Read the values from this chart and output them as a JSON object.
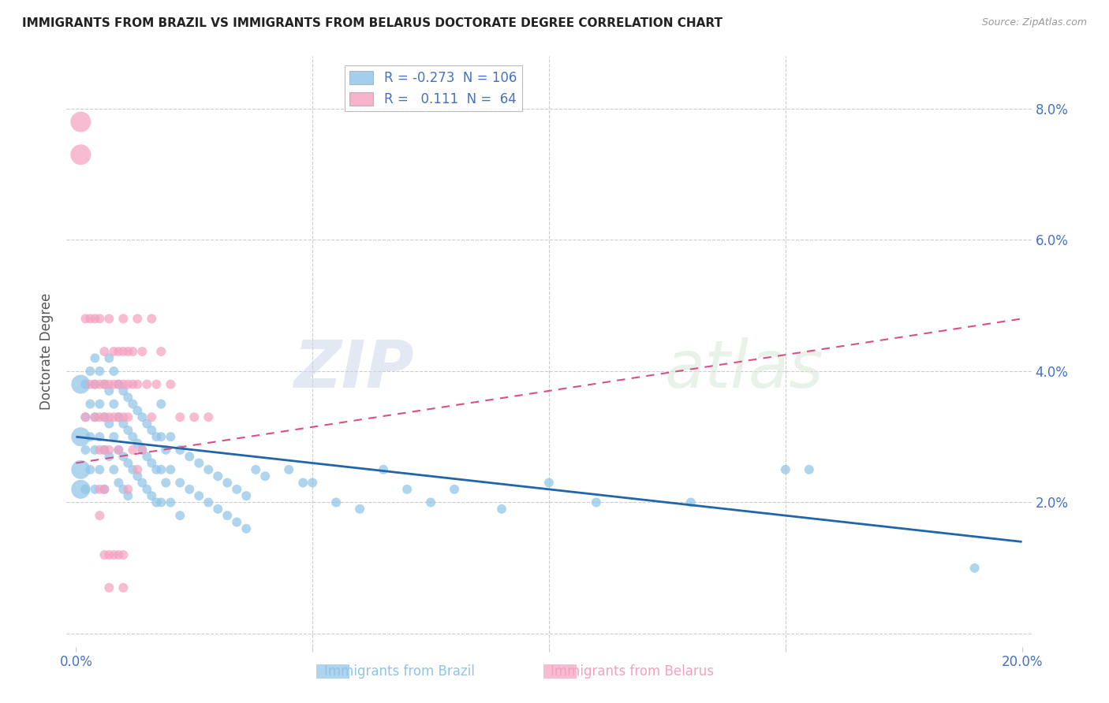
{
  "title": "IMMIGRANTS FROM BRAZIL VS IMMIGRANTS FROM BELARUS DOCTORATE DEGREE CORRELATION CHART",
  "source": "Source: ZipAtlas.com",
  "xlabel_brazil": "Immigrants from Brazil",
  "xlabel_belarus": "Immigrants from Belarus",
  "ylabel": "Doctorate Degree",
  "xlim": [
    -0.002,
    0.202
  ],
  "ylim": [
    -0.002,
    0.088
  ],
  "xticks": [
    0.0,
    0.05,
    0.1,
    0.15,
    0.2
  ],
  "yticks": [
    0.0,
    0.02,
    0.04,
    0.06,
    0.08
  ],
  "ytick_labels": [
    "",
    "2.0%",
    "4.0%",
    "6.0%",
    "8.0%"
  ],
  "xtick_labels": [
    "0.0%",
    "",
    "",
    "",
    "20.0%"
  ],
  "legend_brazil_r": "-0.273",
  "legend_brazil_n": "106",
  "legend_belarus_r": "0.111",
  "legend_belarus_n": "64",
  "brazil_color": "#8ec4e8",
  "belarus_color": "#f4a0c0",
  "brazil_line_color": "#2166ac",
  "belarus_line_color": "#d94f8a",
  "watermark": "ZIPatlas",
  "background_color": "#ffffff",
  "grid_color": "#cccccc",
  "axis_label_color": "#4472c4",
  "title_color": "#222222",
  "brazil_trend": [
    0.0,
    0.2,
    0.03,
    0.014
  ],
  "belarus_trend": [
    0.0,
    0.2,
    0.026,
    0.048
  ],
  "brazil_points": [
    [
      0.001,
      0.038
    ],
    [
      0.001,
      0.03
    ],
    [
      0.001,
      0.025
    ],
    [
      0.001,
      0.022
    ],
    [
      0.002,
      0.038
    ],
    [
      0.002,
      0.033
    ],
    [
      0.002,
      0.028
    ],
    [
      0.002,
      0.022
    ],
    [
      0.003,
      0.04
    ],
    [
      0.003,
      0.035
    ],
    [
      0.003,
      0.03
    ],
    [
      0.003,
      0.025
    ],
    [
      0.004,
      0.042
    ],
    [
      0.004,
      0.038
    ],
    [
      0.004,
      0.033
    ],
    [
      0.004,
      0.028
    ],
    [
      0.004,
      0.022
    ],
    [
      0.005,
      0.04
    ],
    [
      0.005,
      0.035
    ],
    [
      0.005,
      0.03
    ],
    [
      0.005,
      0.025
    ],
    [
      0.006,
      0.038
    ],
    [
      0.006,
      0.033
    ],
    [
      0.006,
      0.028
    ],
    [
      0.006,
      0.022
    ],
    [
      0.007,
      0.042
    ],
    [
      0.007,
      0.037
    ],
    [
      0.007,
      0.032
    ],
    [
      0.007,
      0.027
    ],
    [
      0.008,
      0.04
    ],
    [
      0.008,
      0.035
    ],
    [
      0.008,
      0.03
    ],
    [
      0.008,
      0.025
    ],
    [
      0.009,
      0.038
    ],
    [
      0.009,
      0.033
    ],
    [
      0.009,
      0.028
    ],
    [
      0.009,
      0.023
    ],
    [
      0.01,
      0.037
    ],
    [
      0.01,
      0.032
    ],
    [
      0.01,
      0.027
    ],
    [
      0.01,
      0.022
    ],
    [
      0.011,
      0.036
    ],
    [
      0.011,
      0.031
    ],
    [
      0.011,
      0.026
    ],
    [
      0.011,
      0.021
    ],
    [
      0.012,
      0.035
    ],
    [
      0.012,
      0.03
    ],
    [
      0.012,
      0.025
    ],
    [
      0.013,
      0.034
    ],
    [
      0.013,
      0.029
    ],
    [
      0.013,
      0.024
    ],
    [
      0.014,
      0.033
    ],
    [
      0.014,
      0.028
    ],
    [
      0.014,
      0.023
    ],
    [
      0.015,
      0.032
    ],
    [
      0.015,
      0.027
    ],
    [
      0.015,
      0.022
    ],
    [
      0.016,
      0.031
    ],
    [
      0.016,
      0.026
    ],
    [
      0.016,
      0.021
    ],
    [
      0.017,
      0.03
    ],
    [
      0.017,
      0.025
    ],
    [
      0.017,
      0.02
    ],
    [
      0.018,
      0.035
    ],
    [
      0.018,
      0.03
    ],
    [
      0.018,
      0.025
    ],
    [
      0.018,
      0.02
    ],
    [
      0.019,
      0.028
    ],
    [
      0.019,
      0.023
    ],
    [
      0.02,
      0.03
    ],
    [
      0.02,
      0.025
    ],
    [
      0.02,
      0.02
    ],
    [
      0.022,
      0.028
    ],
    [
      0.022,
      0.023
    ],
    [
      0.022,
      0.018
    ],
    [
      0.024,
      0.027
    ],
    [
      0.024,
      0.022
    ],
    [
      0.026,
      0.026
    ],
    [
      0.026,
      0.021
    ],
    [
      0.028,
      0.025
    ],
    [
      0.028,
      0.02
    ],
    [
      0.03,
      0.024
    ],
    [
      0.03,
      0.019
    ],
    [
      0.032,
      0.023
    ],
    [
      0.032,
      0.018
    ],
    [
      0.034,
      0.022
    ],
    [
      0.034,
      0.017
    ],
    [
      0.036,
      0.021
    ],
    [
      0.036,
      0.016
    ],
    [
      0.038,
      0.025
    ],
    [
      0.04,
      0.024
    ],
    [
      0.045,
      0.025
    ],
    [
      0.048,
      0.023
    ],
    [
      0.05,
      0.023
    ],
    [
      0.055,
      0.02
    ],
    [
      0.06,
      0.019
    ],
    [
      0.065,
      0.025
    ],
    [
      0.07,
      0.022
    ],
    [
      0.075,
      0.02
    ],
    [
      0.08,
      0.022
    ],
    [
      0.09,
      0.019
    ],
    [
      0.1,
      0.023
    ],
    [
      0.11,
      0.02
    ],
    [
      0.13,
      0.02
    ],
    [
      0.15,
      0.025
    ],
    [
      0.155,
      0.025
    ],
    [
      0.19,
      0.01
    ]
  ],
  "brazil_large_indices": [
    0,
    1,
    2,
    3
  ],
  "belarus_points": [
    [
      0.001,
      0.078
    ],
    [
      0.001,
      0.073
    ],
    [
      0.002,
      0.048
    ],
    [
      0.002,
      0.033
    ],
    [
      0.003,
      0.048
    ],
    [
      0.003,
      0.038
    ],
    [
      0.004,
      0.048
    ],
    [
      0.004,
      0.038
    ],
    [
      0.004,
      0.033
    ],
    [
      0.005,
      0.048
    ],
    [
      0.005,
      0.038
    ],
    [
      0.005,
      0.033
    ],
    [
      0.005,
      0.028
    ],
    [
      0.005,
      0.022
    ],
    [
      0.006,
      0.043
    ],
    [
      0.006,
      0.038
    ],
    [
      0.006,
      0.033
    ],
    [
      0.006,
      0.028
    ],
    [
      0.006,
      0.022
    ],
    [
      0.007,
      0.048
    ],
    [
      0.007,
      0.038
    ],
    [
      0.007,
      0.033
    ],
    [
      0.007,
      0.028
    ],
    [
      0.008,
      0.043
    ],
    [
      0.008,
      0.038
    ],
    [
      0.008,
      0.033
    ],
    [
      0.009,
      0.043
    ],
    [
      0.009,
      0.038
    ],
    [
      0.009,
      0.033
    ],
    [
      0.009,
      0.028
    ],
    [
      0.01,
      0.048
    ],
    [
      0.01,
      0.043
    ],
    [
      0.01,
      0.038
    ],
    [
      0.01,
      0.033
    ],
    [
      0.011,
      0.043
    ],
    [
      0.011,
      0.038
    ],
    [
      0.011,
      0.033
    ],
    [
      0.012,
      0.043
    ],
    [
      0.012,
      0.038
    ],
    [
      0.013,
      0.048
    ],
    [
      0.013,
      0.038
    ],
    [
      0.014,
      0.043
    ],
    [
      0.015,
      0.038
    ],
    [
      0.016,
      0.048
    ],
    [
      0.017,
      0.038
    ],
    [
      0.018,
      0.043
    ],
    [
      0.02,
      0.038
    ],
    [
      0.022,
      0.033
    ],
    [
      0.025,
      0.033
    ],
    [
      0.028,
      0.033
    ],
    [
      0.005,
      0.018
    ],
    [
      0.006,
      0.012
    ],
    [
      0.007,
      0.012
    ],
    [
      0.007,
      0.007
    ],
    [
      0.008,
      0.012
    ],
    [
      0.009,
      0.012
    ],
    [
      0.01,
      0.012
    ],
    [
      0.01,
      0.007
    ],
    [
      0.011,
      0.022
    ],
    [
      0.012,
      0.028
    ],
    [
      0.013,
      0.025
    ],
    [
      0.014,
      0.028
    ],
    [
      0.016,
      0.033
    ]
  ],
  "belarus_large_indices": [
    0,
    1
  ]
}
